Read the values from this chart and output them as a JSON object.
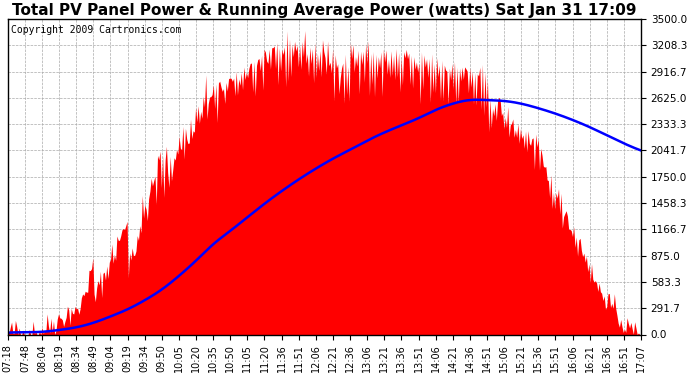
{
  "title": "Total PV Panel Power & Running Average Power (watts) Sat Jan 31 17:09",
  "copyright": "Copyright 2009 Cartronics.com",
  "y_min": 0.0,
  "y_max": 3500.0,
  "y_ticks": [
    0.0,
    291.7,
    583.3,
    875.0,
    1166.7,
    1458.3,
    1750.0,
    2041.7,
    2333.3,
    2625.0,
    2916.7,
    3208.3,
    3500.0
  ],
  "x_labels": [
    "07:18",
    "07:48",
    "08:04",
    "08:19",
    "08:34",
    "08:49",
    "09:04",
    "09:19",
    "09:34",
    "09:50",
    "10:05",
    "10:20",
    "10:35",
    "10:50",
    "11:05",
    "11:20",
    "11:36",
    "11:51",
    "12:06",
    "12:21",
    "12:36",
    "13:06",
    "13:21",
    "13:36",
    "13:51",
    "14:06",
    "14:21",
    "14:36",
    "14:51",
    "15:06",
    "15:21",
    "15:36",
    "15:51",
    "16:06",
    "16:21",
    "16:36",
    "16:51",
    "17:07"
  ],
  "pv_color": "#FF0000",
  "avg_color": "#0000FF",
  "bg_color": "#FFFFFF",
  "plot_bg_color": "#FFFFFF",
  "grid_color": "#AAAAAA",
  "title_fontsize": 11,
  "copyright_fontsize": 7,
  "tick_fontsize": 7.5
}
